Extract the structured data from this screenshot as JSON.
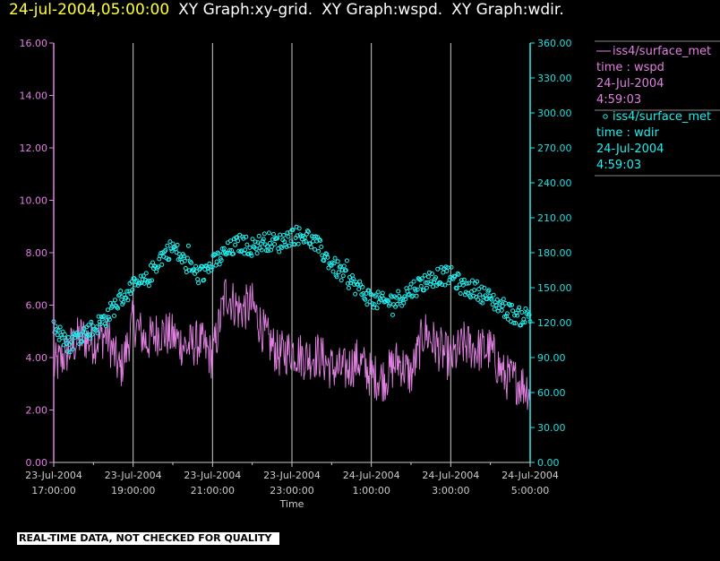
{
  "header": {
    "datetime": "24-jul-2004,05:00:00",
    "graphs": [
      "XY Graph:xy-grid.",
      "XY Graph:wspd.",
      "XY Graph:wdir."
    ]
  },
  "colors": {
    "wspd": "#e080e0",
    "wdir": "#22eeee",
    "grid": "#cccccc",
    "header_date": "#ffff33"
  },
  "legend": [
    {
      "symbol": "line",
      "name": "iss4/surface_met",
      "var": "time : wspd",
      "date": "24-Jul-2004",
      "time": "4:59:03"
    },
    {
      "symbol": "circle",
      "name": "iss4/surface_met",
      "var": "time : wdir",
      "date": "24-Jul-2004",
      "time": "4:59:03"
    }
  ],
  "notice": "REAL-TIME DATA, NOT CHECKED FOR QUALITY",
  "chart_data": {
    "type": "line",
    "xlabel": "Time",
    "x_ticks": [
      {
        "date": "23-Jul-2004",
        "time": "17:00:00"
      },
      {
        "date": "23-Jul-2004",
        "time": "19:00:00"
      },
      {
        "date": "23-Jul-2004",
        "time": "21:00:00"
      },
      {
        "date": "23-Jul-2004",
        "time": "23:00:00"
      },
      {
        "date": "24-Jul-2004",
        "time": "1:00:00"
      },
      {
        "date": "24-Jul-2004",
        "time": "3:00:00"
      },
      {
        "date": "24-Jul-2004",
        "time": "5:00:00"
      }
    ],
    "xlim": [
      "23-Jul-2004 17:00:00",
      "24-Jul-2004 05:00:00"
    ],
    "y_left": {
      "ylim": [
        0,
        16
      ],
      "ticks": [
        "0.00",
        "2.00",
        "4.00",
        "6.00",
        "8.00",
        "10.00",
        "12.00",
        "14.00",
        "16.00"
      ]
    },
    "y_right": {
      "ylim": [
        0,
        360
      ],
      "ticks": [
        "0.00",
        "30.00",
        "60.00",
        "90.00",
        "120.00",
        "150.00",
        "180.00",
        "210.00",
        "240.00",
        "270.00",
        "300.00",
        "330.00",
        "360.00"
      ]
    },
    "grid": "vertical lines at labeled time ticks",
    "series": [
      {
        "name": "iss4/surface_met  time : wspd",
        "axis": "left",
        "style": "line",
        "x": [
          "23-Jul-2004 17:00",
          "23-Jul-2004 17:20",
          "23-Jul-2004 17:40",
          "23-Jul-2004 18:00",
          "23-Jul-2004 18:20",
          "23-Jul-2004 18:40",
          "23-Jul-2004 18:50",
          "23-Jul-2004 19:00",
          "23-Jul-2004 19:20",
          "23-Jul-2004 19:40",
          "23-Jul-2004 20:00",
          "23-Jul-2004 20:20",
          "23-Jul-2004 20:40",
          "23-Jul-2004 21:00",
          "23-Jul-2004 21:20",
          "23-Jul-2004 21:40",
          "23-Jul-2004 22:00",
          "23-Jul-2004 22:20",
          "23-Jul-2004 22:40",
          "23-Jul-2004 23:00",
          "23-Jul-2004 23:20",
          "23-Jul-2004 23:40",
          "24-Jul-2004 00:00",
          "24-Jul-2004 00:20",
          "24-Jul-2004 00:40",
          "24-Jul-2004 01:00",
          "24-Jul-2004 01:20",
          "24-Jul-2004 01:40",
          "24-Jul-2004 02:00",
          "24-Jul-2004 02:20",
          "24-Jul-2004 02:40",
          "24-Jul-2004 03:00",
          "24-Jul-2004 03:20",
          "24-Jul-2004 03:40",
          "24-Jul-2004 04:00",
          "24-Jul-2004 04:20",
          "24-Jul-2004 04:40",
          "24-Jul-2004 05:00"
        ],
        "values": [
          3.6,
          4.2,
          4.8,
          4.6,
          4.9,
          3.5,
          4.3,
          5.4,
          4.6,
          5.0,
          4.8,
          4.4,
          4.6,
          4.0,
          6.5,
          5.8,
          6.0,
          4.8,
          4.1,
          4.3,
          4.0,
          4.1,
          3.6,
          3.5,
          3.9,
          3.3,
          3.2,
          3.9,
          3.3,
          5.0,
          4.4,
          3.9,
          4.5,
          4.3,
          4.3,
          3.3,
          3.1,
          2.8
        ]
      },
      {
        "name": "iss4/surface_met  time : wdir",
        "axis": "right",
        "style": "circle",
        "x": [
          "23-Jul-2004 17:00",
          "23-Jul-2004 17:20",
          "23-Jul-2004 17:40",
          "23-Jul-2004 18:00",
          "23-Jul-2004 18:20",
          "23-Jul-2004 18:40",
          "23-Jul-2004 19:00",
          "23-Jul-2004 19:20",
          "23-Jul-2004 19:40",
          "23-Jul-2004 20:00",
          "23-Jul-2004 20:20",
          "23-Jul-2004 20:40",
          "23-Jul-2004 21:00",
          "23-Jul-2004 21:20",
          "23-Jul-2004 21:40",
          "23-Jul-2004 22:00",
          "23-Jul-2004 22:20",
          "23-Jul-2004 22:40",
          "23-Jul-2004 23:00",
          "23-Jul-2004 23:20",
          "23-Jul-2004 23:40",
          "24-Jul-2004 00:00",
          "24-Jul-2004 00:20",
          "24-Jul-2004 00:40",
          "24-Jul-2004 01:00",
          "24-Jul-2004 01:20",
          "24-Jul-2004 01:40",
          "24-Jul-2004 02:00",
          "24-Jul-2004 02:20",
          "24-Jul-2004 02:40",
          "24-Jul-2004 03:00",
          "24-Jul-2004 03:20",
          "24-Jul-2004 03:40",
          "24-Jul-2004 04:00",
          "24-Jul-2004 04:20",
          "24-Jul-2004 04:40",
          "24-Jul-2004 05:00"
        ],
        "values": [
          118,
          100,
          110,
          115,
          125,
          140,
          150,
          155,
          175,
          185,
          170,
          160,
          170,
          180,
          188,
          185,
          190,
          188,
          195,
          195,
          185,
          170,
          160,
          150,
          140,
          137,
          140,
          148,
          155,
          160,
          160,
          150,
          148,
          140,
          133,
          125,
          126
        ]
      }
    ]
  }
}
